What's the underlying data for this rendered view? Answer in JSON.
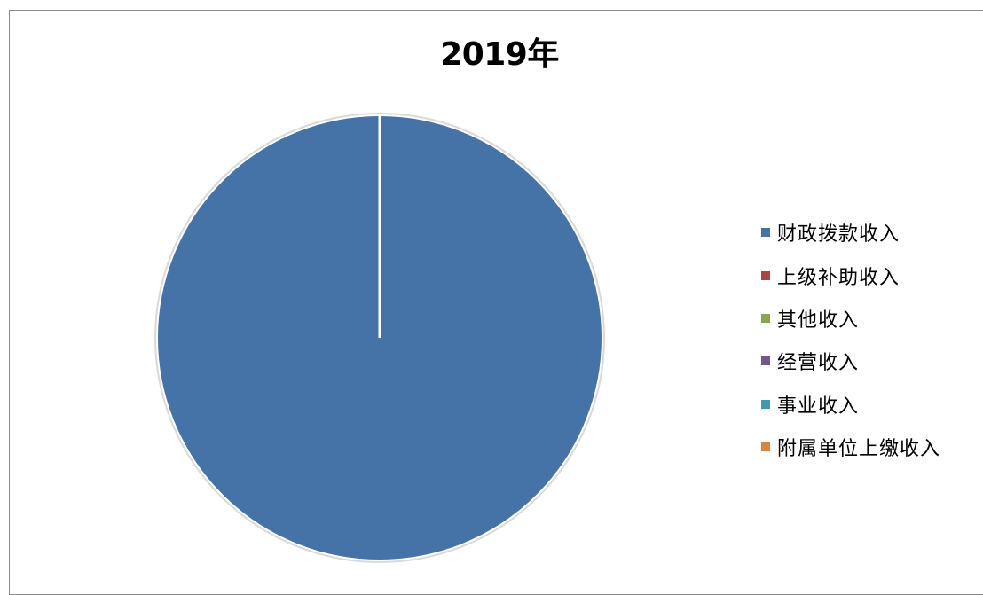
{
  "chart_data": {
    "type": "pie",
    "title": "2019年",
    "legend_position": "right",
    "slices": [
      {
        "label": "财政拨款收入",
        "value": 100,
        "color": "#4572a7"
      },
      {
        "label": "上级补助收入",
        "value": 0,
        "color": "#aa4643"
      },
      {
        "label": "其他收入",
        "value": 0,
        "color": "#89a54e"
      },
      {
        "label": "经营收入",
        "value": 0,
        "color": "#71588f"
      },
      {
        "label": "事业收入",
        "value": 0,
        "color": "#4198af"
      },
      {
        "label": "附属单位上缴收入",
        "value": 0,
        "color": "#db843d"
      }
    ]
  }
}
